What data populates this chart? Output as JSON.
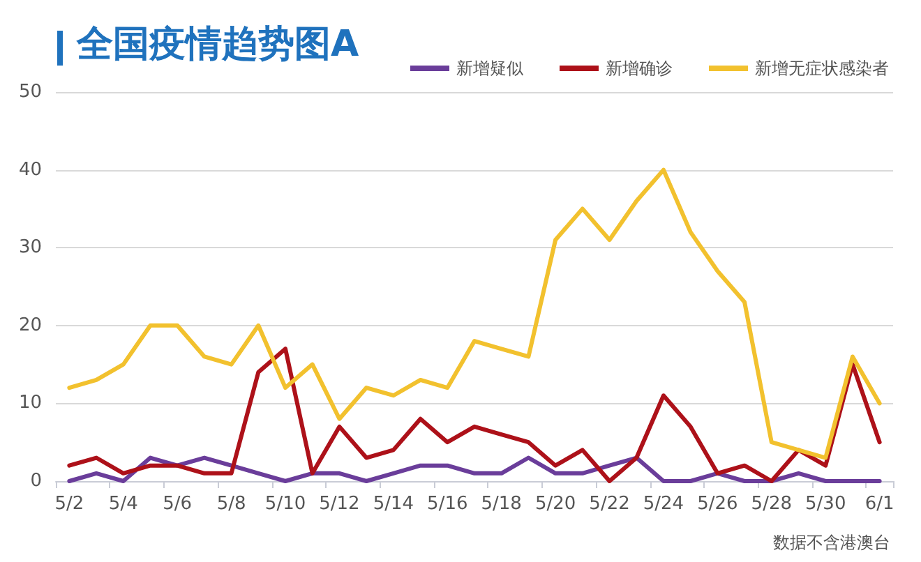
{
  "chart_data": {
    "type": "line",
    "title": "全国疫情趋势图A",
    "categories": [
      "5/2",
      null,
      "5/4",
      null,
      "5/6",
      null,
      "5/8",
      null,
      "5/10",
      null,
      "5/12",
      null,
      "5/14",
      null,
      "5/16",
      null,
      "5/18",
      null,
      "5/20",
      null,
      "5/22",
      null,
      "5/24",
      null,
      "5/26",
      null,
      "5/28",
      null,
      "5/30",
      null,
      "6/1"
    ],
    "series": [
      {
        "name": "新增疑似",
        "color": "#6a3d9a",
        "values": [
          0,
          1,
          0,
          3,
          2,
          3,
          2,
          1,
          0,
          1,
          1,
          0,
          1,
          2,
          2,
          1,
          1,
          3,
          1,
          1,
          2,
          3,
          0,
          0,
          1,
          0,
          0,
          1,
          0,
          0,
          0
        ]
      },
      {
        "name": "新增确诊",
        "color": "#ad1119",
        "values": [
          2,
          3,
          1,
          2,
          2,
          1,
          1,
          14,
          17,
          1,
          7,
          3,
          4,
          8,
          5,
          7,
          6,
          5,
          2,
          4,
          0,
          3,
          11,
          7,
          1,
          2,
          0,
          4,
          2,
          15,
          5
        ]
      },
      {
        "name": "新增无症状感染者",
        "color": "#f2c12e",
        "values": [
          12,
          13,
          15,
          20,
          20,
          16,
          15,
          20,
          12,
          15,
          8,
          12,
          11,
          13,
          12,
          18,
          17,
          16,
          31,
          35,
          31,
          36,
          40,
          32,
          27,
          23,
          5,
          4,
          3,
          16,
          10
        ]
      }
    ],
    "ylim": [
      0,
      50
    ],
    "yticks": [
      0,
      10,
      20,
      30,
      40,
      50
    ],
    "grid": "y",
    "legend": "top right",
    "marker": "none",
    "line_style": "solid",
    "annotations": [
      "数据不含港澳台"
    ]
  }
}
